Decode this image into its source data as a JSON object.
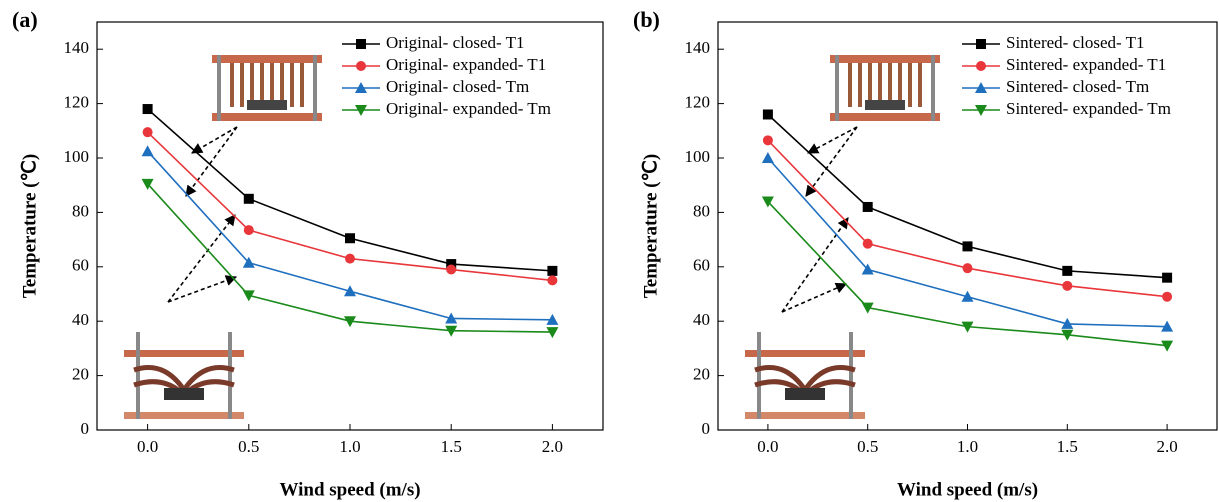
{
  "chart_data": [
    {
      "type": "line",
      "panel_label": "(a)",
      "x_label": "Wind speed (m/s)",
      "y_label": "Temperature (℃)",
      "x": [
        0,
        0.5,
        1,
        1.5,
        2
      ],
      "xlim": [
        -0.25,
        2.25
      ],
      "xticks": [
        {
          "value": 0,
          "label": "0.0"
        },
        {
          "value": 0.5,
          "label": "0.5"
        },
        {
          "value": 1,
          "label": "1.0"
        },
        {
          "value": 1.5,
          "label": "1.5"
        },
        {
          "value": 2,
          "label": "2.0"
        }
      ],
      "ylim": [
        0,
        150
      ],
      "yticks": [
        0,
        20,
        40,
        60,
        80,
        100,
        120,
        140
      ],
      "series": [
        {
          "name": "Original- closed- T1",
          "color": "#000000",
          "marker": "square",
          "values": [
            118,
            85,
            70.5,
            61,
            58.5
          ]
        },
        {
          "name": "Original- expanded- T1",
          "color": "#e8363b",
          "marker": "circle",
          "values": [
            109.5,
            73.5,
            63,
            59,
            55
          ]
        },
        {
          "name": "Original- closed- Tm",
          "color": "#1f6fbf",
          "marker": "triangle-up",
          "values": [
            102.5,
            61.5,
            51,
            41,
            40.5
          ]
        },
        {
          "name": "Original- expanded- Tm",
          "color": "#1a8a1a",
          "marker": "triangle-down",
          "values": [
            90.5,
            49.5,
            40,
            36.5,
            36
          ]
        }
      ]
    },
    {
      "type": "line",
      "panel_label": "(b)",
      "x_label": "Wind speed (m/s)",
      "y_label": "Temperature (℃)",
      "x": [
        0,
        0.5,
        1,
        1.5,
        2
      ],
      "xlim": [
        -0.25,
        2.25
      ],
      "xticks": [
        {
          "value": 0,
          "label": "0.0"
        },
        {
          "value": 0.5,
          "label": "0.5"
        },
        {
          "value": 1,
          "label": "1.0"
        },
        {
          "value": 1.5,
          "label": "1.5"
        },
        {
          "value": 2,
          "label": "2.0"
        }
      ],
      "ylim": [
        0,
        150
      ],
      "yticks": [
        0,
        20,
        40,
        60,
        80,
        100,
        120,
        140
      ],
      "series": [
        {
          "name": "Sintered- closed- T1",
          "color": "#000000",
          "marker": "square",
          "values": [
            116,
            82,
            67.5,
            58.5,
            56
          ]
        },
        {
          "name": "Sintered- expanded- T1",
          "color": "#e8363b",
          "marker": "circle",
          "values": [
            106.5,
            68.5,
            59.5,
            53,
            49
          ]
        },
        {
          "name": "Sintered- closed- Tm",
          "color": "#1f6fbf",
          "marker": "triangle-up",
          "values": [
            100,
            59,
            49,
            39,
            38
          ]
        },
        {
          "name": "Sintered- expanded- Tm",
          "color": "#1a8a1a",
          "marker": "triangle-down",
          "values": [
            84,
            45,
            38,
            35,
            31
          ]
        }
      ]
    }
  ]
}
